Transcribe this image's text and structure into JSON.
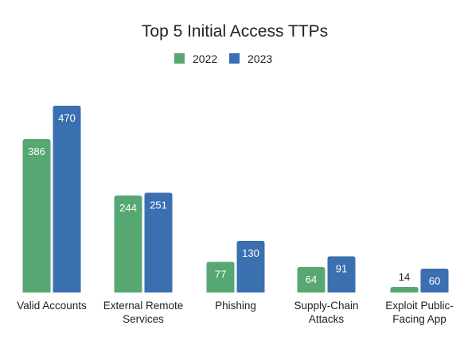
{
  "chart_data": {
    "type": "bar",
    "title": "Top 5 Initial Access TTPs",
    "categories": [
      [
        "Valid Accounts"
      ],
      [
        "External Remote",
        "Services"
      ],
      [
        "Phishing"
      ],
      [
        "Supply-Chain",
        "Attacks"
      ],
      [
        "Exploit Public-",
        "Facing App"
      ]
    ],
    "series": [
      {
        "name": "2022",
        "color": "#57a773",
        "values": [
          386,
          244,
          77,
          64,
          14
        ]
      },
      {
        "name": "2023",
        "color": "#3a6fb0",
        "values": [
          470,
          251,
          130,
          91,
          60
        ]
      }
    ],
    "ylim": [
      0,
      500
    ],
    "grid": false,
    "legend_position": "top-center"
  }
}
